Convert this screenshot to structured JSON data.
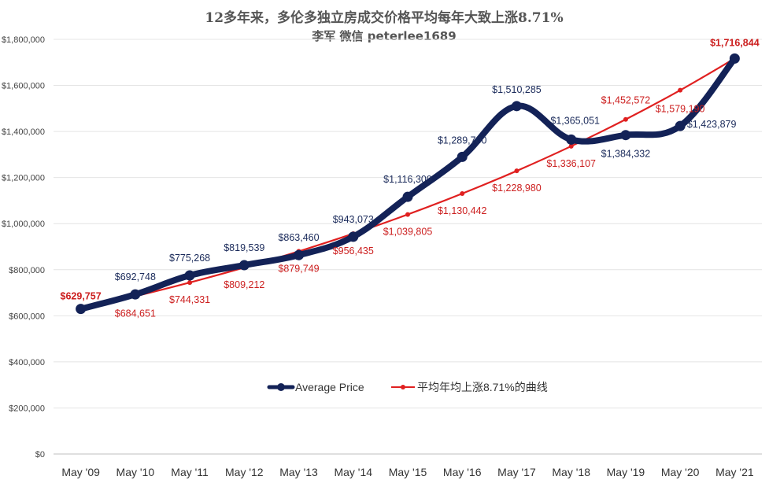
{
  "chart_data": {
    "type": "line",
    "title": "12多年来，多伦多独立房成交价格平均每年大致上涨8.71%",
    "subtitle": "李军 微信 peterlee1689",
    "categories": [
      "May '09",
      "May '10",
      "May '11",
      "May '12",
      "May '13",
      "May '14",
      "May '15",
      "May '16",
      "May '17",
      "May '18",
      "May '19",
      "May '20",
      "May '21"
    ],
    "ylim": [
      0,
      1800000
    ],
    "yticks": [
      0,
      200000,
      400000,
      600000,
      800000,
      1000000,
      1200000,
      1400000,
      1600000,
      1800000
    ],
    "ytick_labels": [
      "$0",
      "$200,000",
      "$400,000",
      "$600,000",
      "$800,000",
      "$1,000,000",
      "$1,200,000",
      "$1,400,000",
      "$1,600,000",
      "$1,800,000"
    ],
    "grid": true,
    "legend_position": "center",
    "series": [
      {
        "name": "Average Price",
        "color": "#132257",
        "values": [
          629757,
          692748,
          775268,
          819539,
          863460,
          943073,
          1116309,
          1289700,
          1510285,
          1365051,
          1384332,
          1423879,
          1716844
        ],
        "labels": [
          "$629,757",
          "$692,748",
          "$775,268",
          "$819,539",
          "$863,460",
          "$943,073",
          "$1,116,309",
          "$1,289,700",
          "$1,510,285",
          "$1,365,051",
          "$1,384,332",
          "$1,423,879",
          "$1,716,844"
        ]
      },
      {
        "name": "平均年均上涨8.71%的曲线",
        "color": "#e02020",
        "values": [
          629757,
          684651,
          744331,
          809212,
          879749,
          956435,
          1039805,
          1130442,
          1228980,
          1336107,
          1452572,
          1579190,
          1716844
        ],
        "labels": [
          "$629,757",
          "$684,651",
          "$744,331",
          "$809,212",
          "$879,749",
          "$956,435",
          "$1,039,805",
          "$1,130,442",
          "$1,228,980",
          "$1,336,107",
          "$1,452,572",
          "$1,579,190",
          "$1,716,844"
        ]
      }
    ]
  }
}
